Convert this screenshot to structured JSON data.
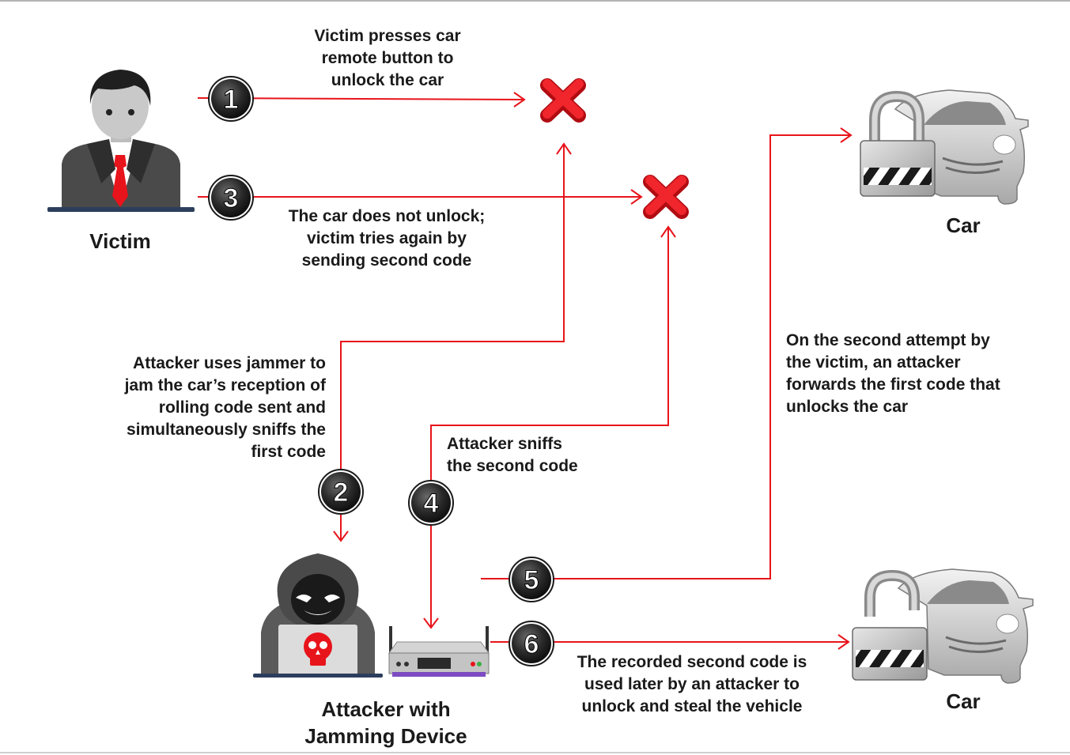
{
  "actors": {
    "victim": "Victim",
    "attacker": "Attacker with\nJamming Device",
    "car_locked": "Car",
    "car_unlocked": "Car"
  },
  "steps": [
    {
      "number": "1",
      "text": "Victim presses car\nremote button to\nunlock the car"
    },
    {
      "number": "2",
      "text": "Attacker uses jammer to\njam the car’s reception of\nrolling code sent and\nsimultaneously sniffs the\nfirst code"
    },
    {
      "number": "3",
      "text": "The car does not unlock;\nvictim tries again by\nsending second code"
    },
    {
      "number": "4",
      "text": "Attacker sniffs\nthe second code"
    },
    {
      "number": "5",
      "text": "On the second attempt by\nthe victim, an attacker\nforwards the first code that\nunlocks the car"
    },
    {
      "number": "6",
      "text": "The recorded second code is\nused later by an attacker to\nunlock and steal the vehicle"
    }
  ],
  "icons": [
    "person-icon",
    "hacker-icon",
    "skull-icon",
    "router-icon",
    "red-x-icon",
    "car-icon",
    "padlock-closed-icon",
    "padlock-open-icon"
  ],
  "colors": {
    "arrow": "#e8141b",
    "x_mark": "#e8141b",
    "badge": "#1a1a1a"
  }
}
